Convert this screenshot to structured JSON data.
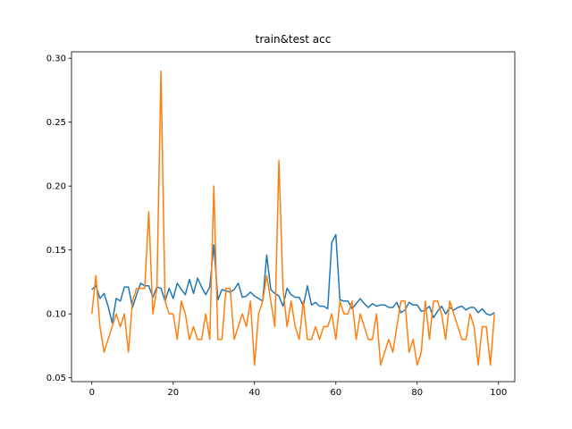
{
  "chart_data": {
    "type": "line",
    "title": "train&test acc",
    "xlabel": "",
    "ylabel": "",
    "xlim": [
      -5,
      104
    ],
    "ylim": [
      0.047,
      0.305
    ],
    "xticks": [
      0,
      20,
      40,
      60,
      80,
      100
    ],
    "yticks": [
      0.05,
      0.1,
      0.15,
      0.2,
      0.25,
      0.3
    ],
    "ytick_labels": [
      "0.05",
      "0.10",
      "0.15",
      "0.20",
      "0.25",
      "0.30"
    ],
    "grid": false,
    "series": [
      {
        "color": "#1f77b4",
        "x": [
          0,
          1,
          2,
          3,
          4,
          5,
          6,
          7,
          8,
          9,
          10,
          11,
          12,
          13,
          14,
          15,
          16,
          17,
          18,
          19,
          20,
          21,
          22,
          23,
          24,
          25,
          26,
          27,
          28,
          29,
          30,
          31,
          32,
          33,
          34,
          35,
          36,
          37,
          38,
          39,
          40,
          41,
          42,
          43,
          44,
          45,
          46,
          47,
          48,
          49,
          50,
          51,
          52,
          53,
          54,
          55,
          56,
          57,
          58,
          59,
          60,
          61,
          62,
          63,
          64,
          65,
          66,
          67,
          68,
          69,
          70,
          71,
          72,
          73,
          74,
          75,
          76,
          77,
          78,
          79,
          80,
          81,
          82,
          83,
          84,
          85,
          86,
          87,
          88,
          89,
          90,
          91,
          92,
          93,
          94,
          95,
          96,
          97,
          98,
          99
        ],
        "y": [
          0.119,
          0.122,
          0.112,
          0.116,
          0.106,
          0.093,
          0.112,
          0.11,
          0.121,
          0.121,
          0.105,
          0.115,
          0.124,
          0.122,
          0.122,
          0.113,
          0.121,
          0.12,
          0.11,
          0.12,
          0.112,
          0.124,
          0.119,
          0.115,
          0.127,
          0.116,
          0.128,
          0.121,
          0.115,
          0.121,
          0.154,
          0.111,
          0.119,
          0.118,
          0.117,
          0.119,
          0.124,
          0.113,
          0.114,
          0.117,
          0.114,
          0.112,
          0.11,
          0.146,
          0.119,
          0.116,
          0.114,
          0.106,
          0.12,
          0.115,
          0.113,
          0.113,
          0.106,
          0.122,
          0.107,
          0.109,
          0.106,
          0.106,
          0.104,
          0.156,
          0.162,
          0.111,
          0.11,
          0.11,
          0.104,
          0.108,
          0.112,
          0.108,
          0.105,
          0.108,
          0.106,
          0.107,
          0.107,
          0.105,
          0.105,
          0.109,
          0.101,
          0.103,
          0.109,
          0.107,
          0.107,
          0.102,
          0.103,
          0.106,
          0.097,
          0.102,
          0.106,
          0.1,
          0.105,
          0.103,
          0.105,
          0.106,
          0.103,
          0.105,
          0.105,
          0.101,
          0.104,
          0.1,
          0.099,
          0.101
        ]
      },
      {
        "color": "#ff7f0e",
        "x": [
          0,
          1,
          2,
          3,
          4,
          5,
          6,
          7,
          8,
          9,
          10,
          11,
          12,
          13,
          14,
          15,
          16,
          17,
          18,
          19,
          20,
          21,
          22,
          23,
          24,
          25,
          26,
          27,
          28,
          29,
          30,
          31,
          32,
          33,
          34,
          35,
          36,
          37,
          38,
          39,
          40,
          41,
          42,
          43,
          44,
          45,
          46,
          47,
          48,
          49,
          50,
          51,
          52,
          53,
          54,
          55,
          56,
          57,
          58,
          59,
          60,
          61,
          62,
          63,
          64,
          65,
          66,
          67,
          68,
          69,
          70,
          71,
          72,
          73,
          74,
          75,
          76,
          77,
          78,
          79,
          80,
          81,
          82,
          83,
          84,
          85,
          86,
          87,
          88,
          89,
          90,
          91,
          92,
          93,
          94,
          95,
          96,
          97,
          98,
          99
        ],
        "y": [
          0.1,
          0.13,
          0.09,
          0.07,
          0.08,
          0.09,
          0.1,
          0.09,
          0.1,
          0.07,
          0.11,
          0.12,
          0.12,
          0.12,
          0.18,
          0.1,
          0.12,
          0.29,
          0.11,
          0.1,
          0.1,
          0.08,
          0.11,
          0.1,
          0.08,
          0.09,
          0.08,
          0.08,
          0.1,
          0.08,
          0.2,
          0.08,
          0.08,
          0.12,
          0.12,
          0.08,
          0.09,
          0.1,
          0.09,
          0.11,
          0.06,
          0.1,
          0.11,
          0.13,
          0.11,
          0.09,
          0.22,
          0.12,
          0.09,
          0.11,
          0.09,
          0.08,
          0.11,
          0.08,
          0.08,
          0.09,
          0.08,
          0.09,
          0.09,
          0.1,
          0.08,
          0.11,
          0.1,
          0.1,
          0.11,
          0.08,
          0.1,
          0.09,
          0.08,
          0.08,
          0.1,
          0.06,
          0.07,
          0.08,
          0.07,
          0.09,
          0.11,
          0.11,
          0.07,
          0.08,
          0.06,
          0.07,
          0.11,
          0.08,
          0.11,
          0.11,
          0.1,
          0.08,
          0.11,
          0.1,
          0.09,
          0.08,
          0.08,
          0.1,
          0.09,
          0.06,
          0.09,
          0.09,
          0.06,
          0.1
        ]
      }
    ]
  }
}
